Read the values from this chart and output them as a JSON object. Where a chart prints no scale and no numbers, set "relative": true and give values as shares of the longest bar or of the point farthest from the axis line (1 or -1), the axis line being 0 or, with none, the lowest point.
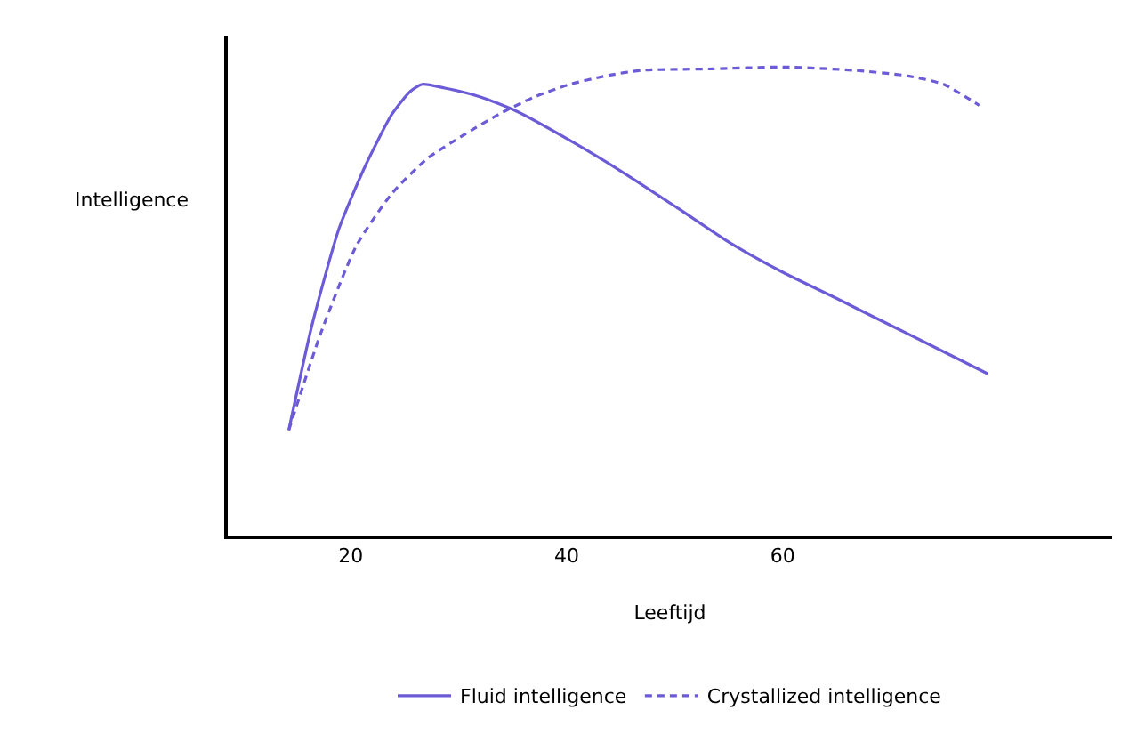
{
  "chart_data": {
    "type": "line",
    "xlabel": "Leeftijd",
    "ylabel": "Intelligence",
    "relative": true,
    "xlim": [
      8.6,
      90.5
    ],
    "xticks": [
      20,
      40,
      60
    ],
    "legend": "bottom",
    "marker": "none",
    "series": [
      {
        "name": "Fluid intelligence",
        "color": "#6b5bd6",
        "line_style": "solid",
        "x": [
          14.25,
          16.4,
          18.9,
          21.3,
          23.8,
          25.5,
          26.6,
          28.7,
          32.0,
          35.3,
          40.3,
          45.2,
          50.2,
          55.1,
          60.0,
          65.0,
          68.3,
          73.2,
          79.0
        ],
        "values": [
          0.225,
          0.449,
          0.655,
          0.787,
          0.899,
          0.948,
          0.963,
          0.955,
          0.936,
          0.906,
          0.843,
          0.775,
          0.7,
          0.625,
          0.562,
          0.506,
          0.468,
          0.412,
          0.345
        ]
      },
      {
        "name": "Crystallized intelligence",
        "color": "#6b5bd6",
        "line_style": "dashed",
        "x": [
          14.25,
          17.2,
          20.5,
          23.8,
          27.1,
          30.4,
          33.7,
          37.0,
          40.3,
          43.6,
          46.9,
          53.5,
          60.0,
          66.6,
          71.6,
          74.9,
          78.2
        ],
        "values": [
          0.225,
          0.431,
          0.618,
          0.73,
          0.805,
          0.854,
          0.899,
          0.936,
          0.963,
          0.981,
          0.993,
          0.996,
          1,
          0.993,
          0.981,
          0.963,
          0.918
        ]
      }
    ]
  }
}
